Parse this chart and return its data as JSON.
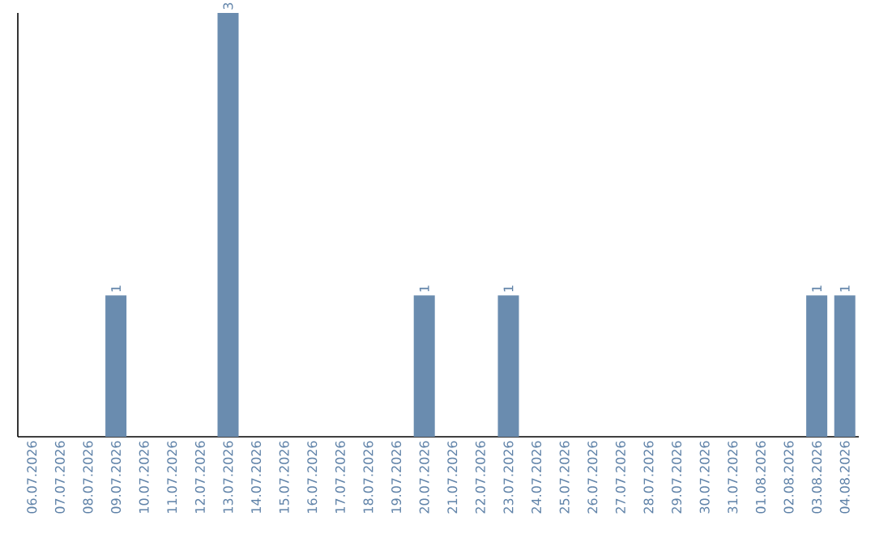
{
  "chart_data": {
    "type": "bar",
    "categories": [
      "06.07.2026",
      "07.07.2026",
      "08.07.2026",
      "09.07.2026",
      "10.07.2026",
      "11.07.2026",
      "12.07.2026",
      "13.07.2026",
      "14.07.2026",
      "15.07.2026",
      "16.07.2026",
      "17.07.2026",
      "18.07.2026",
      "19.07.2026",
      "20.07.2026",
      "21.07.2026",
      "22.07.2026",
      "23.07.2026",
      "24.07.2026",
      "25.07.2026",
      "26.07.2026",
      "27.07.2026",
      "28.07.2026",
      "29.07.2026",
      "30.07.2026",
      "31.07.2026",
      "01.08.2026",
      "02.08.2026",
      "03.08.2026",
      "04.08.2026"
    ],
    "values": [
      0,
      0,
      0,
      1,
      0,
      0,
      0,
      3,
      0,
      0,
      0,
      0,
      0,
      0,
      1,
      0,
      0,
      1,
      0,
      0,
      0,
      0,
      0,
      0,
      0,
      0,
      0,
      0,
      1,
      1
    ],
    "value_labels": [
      null,
      null,
      null,
      "1",
      null,
      null,
      null,
      "3",
      null,
      null,
      null,
      null,
      null,
      null,
      "1",
      null,
      null,
      "1",
      null,
      null,
      null,
      null,
      null,
      null,
      null,
      null,
      null,
      null,
      "1",
      "1"
    ],
    "color": "#6a8caf"
  }
}
